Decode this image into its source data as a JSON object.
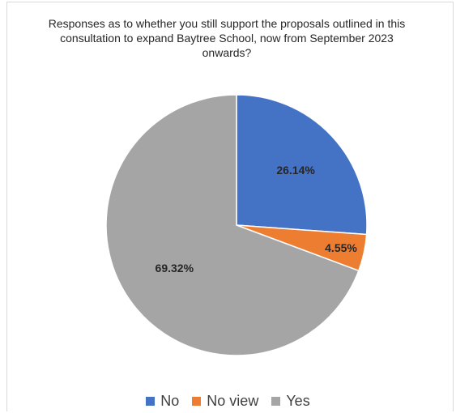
{
  "chart_data": {
    "type": "pie",
    "title_lines": [
      "Responses as to whether you still support the proposals outlined in this",
      "consultation to expand Baytree School, now  from September  2023",
      "onwards?"
    ],
    "slices": [
      {
        "name": "No",
        "value": 26.14,
        "label": "26.14%",
        "color": "#4472C4"
      },
      {
        "name": "No view",
        "value": 4.55,
        "label": "4.55%",
        "color": "#ED7D31"
      },
      {
        "name": "Yes",
        "value": 69.32,
        "label": "69.32%",
        "color": "#A5A5A5"
      }
    ],
    "start_angle_deg": 0,
    "direction": "clockwise",
    "legend_position": "bottom"
  }
}
